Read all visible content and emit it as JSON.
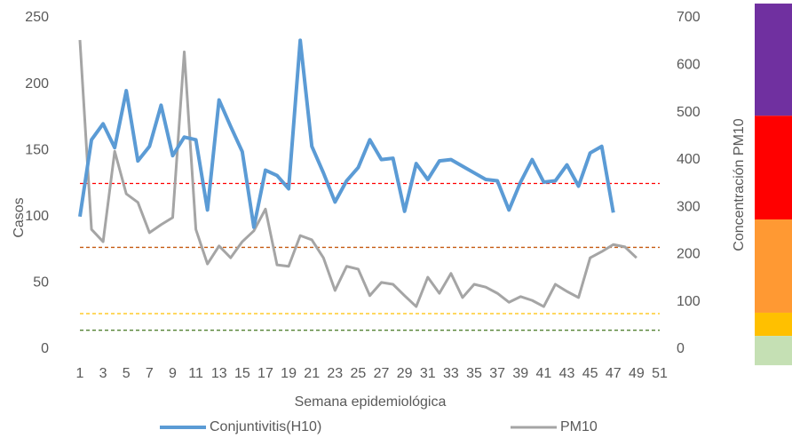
{
  "chart_data": {
    "type": "line",
    "xlabel": "Semana epidemiológica",
    "ylabel": "Casos",
    "y2label": "Concentración PM10",
    "xlim": [
      1,
      51
    ],
    "xticks": [
      1,
      3,
      5,
      7,
      9,
      11,
      13,
      15,
      17,
      19,
      21,
      23,
      25,
      27,
      29,
      31,
      33,
      35,
      37,
      39,
      41,
      43,
      45,
      47,
      49,
      51
    ],
    "ylim": [
      0,
      250
    ],
    "yticks": [
      0,
      50,
      100,
      150,
      200,
      250
    ],
    "y2lim": [
      0,
      700
    ],
    "y2ticks": [
      0,
      100,
      200,
      300,
      400,
      500,
      600,
      700
    ],
    "legend": "bottom",
    "series": [
      {
        "name": "Conjuntivitis(H10)",
        "color": "#5b9bd5",
        "x": [
          1,
          2,
          3,
          4,
          5,
          6,
          7,
          8,
          9,
          10,
          11,
          12,
          13,
          14,
          15,
          16,
          17,
          18,
          19,
          20,
          21,
          22,
          23,
          24,
          25,
          26,
          27,
          28,
          29,
          30,
          31,
          32,
          33,
          34,
          35,
          36,
          37,
          38,
          39,
          40,
          41,
          42,
          43,
          44,
          45,
          46,
          47
        ],
        "values": [
          100,
          158,
          170,
          152,
          195,
          142,
          153,
          184,
          146,
          160,
          158,
          105,
          188,
          168,
          149,
          92,
          135,
          131,
          121,
          233,
          153,
          133,
          111,
          127,
          137,
          158,
          143,
          144,
          104,
          140,
          128,
          142,
          143,
          138,
          133,
          128,
          127,
          105,
          126,
          143,
          126,
          127,
          139,
          123,
          148,
          153,
          103
        ]
      },
      {
        "name": "PM10",
        "color": "#a5a5a5",
        "axis": "y2",
        "x": [
          1,
          2,
          3,
          4,
          5,
          6,
          7,
          8,
          9,
          10,
          11,
          12,
          13,
          14,
          15,
          16,
          17,
          18,
          19,
          20,
          21,
          22,
          23,
          24,
          25,
          26,
          27,
          28,
          29,
          30,
          31,
          32,
          33,
          34,
          35,
          36,
          37,
          38,
          39,
          40,
          41,
          42,
          43,
          44,
          45,
          46,
          47,
          48,
          49
        ],
        "values": [
          653,
          253,
          227,
          418,
          328,
          310,
          246,
          263,
          278,
          628,
          253,
          180,
          218,
          193,
          227,
          250,
          296,
          178,
          175,
          240,
          231,
          193,
          124,
          175,
          169,
          113,
          141,
          137,
          113,
          90,
          152,
          118,
          160,
          109,
          137,
          131,
          118,
          99,
          111,
          103,
          90,
          137,
          122,
          109,
          193,
          206,
          221,
          216,
          193
        ]
      }
    ],
    "reference_lines": [
      {
        "value": 350,
        "color": "#ff0000",
        "axis": "y2"
      },
      {
        "value": 215,
        "color": "#c55a11",
        "axis": "y2"
      },
      {
        "value": 75,
        "color": "#ffc000",
        "axis": "y2"
      },
      {
        "value": 40,
        "color": "#548235",
        "axis": "y2"
      }
    ],
    "color_bands": [
      {
        "from": 493,
        "to": 730,
        "color": "#7030a0"
      },
      {
        "from": 274,
        "to": 493,
        "color": "#ff0000"
      },
      {
        "from": 77,
        "to": 274,
        "color": "#ff9933"
      },
      {
        "from": 28,
        "to": 77,
        "color": "#ffc000"
      },
      {
        "from": -34,
        "to": 28,
        "color": "#c5e0b4"
      }
    ]
  }
}
